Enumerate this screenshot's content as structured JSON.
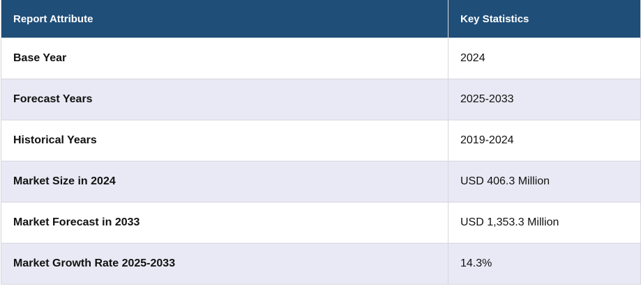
{
  "table": {
    "headers": [
      "Report Attribute",
      "Key Statistics"
    ],
    "rows": [
      {
        "attribute": "Base Year",
        "value": "2024"
      },
      {
        "attribute": "Forecast Years",
        "value": "2025-2033"
      },
      {
        "attribute": "Historical Years",
        "value": "2019-2024"
      },
      {
        "attribute": "Market Size in 2024",
        "value": "USD 406.3 Million"
      },
      {
        "attribute": "Market Forecast in 2033",
        "value": "USD 1,353.3 Million"
      },
      {
        "attribute": "Market Growth Rate 2025-2033",
        "value": "14.3%"
      }
    ]
  },
  "colors": {
    "header_bg": "#1f4e79",
    "header_text": "#ffffff",
    "row_alt_bg": "#e8e9f4",
    "row_bg": "#ffffff"
  }
}
